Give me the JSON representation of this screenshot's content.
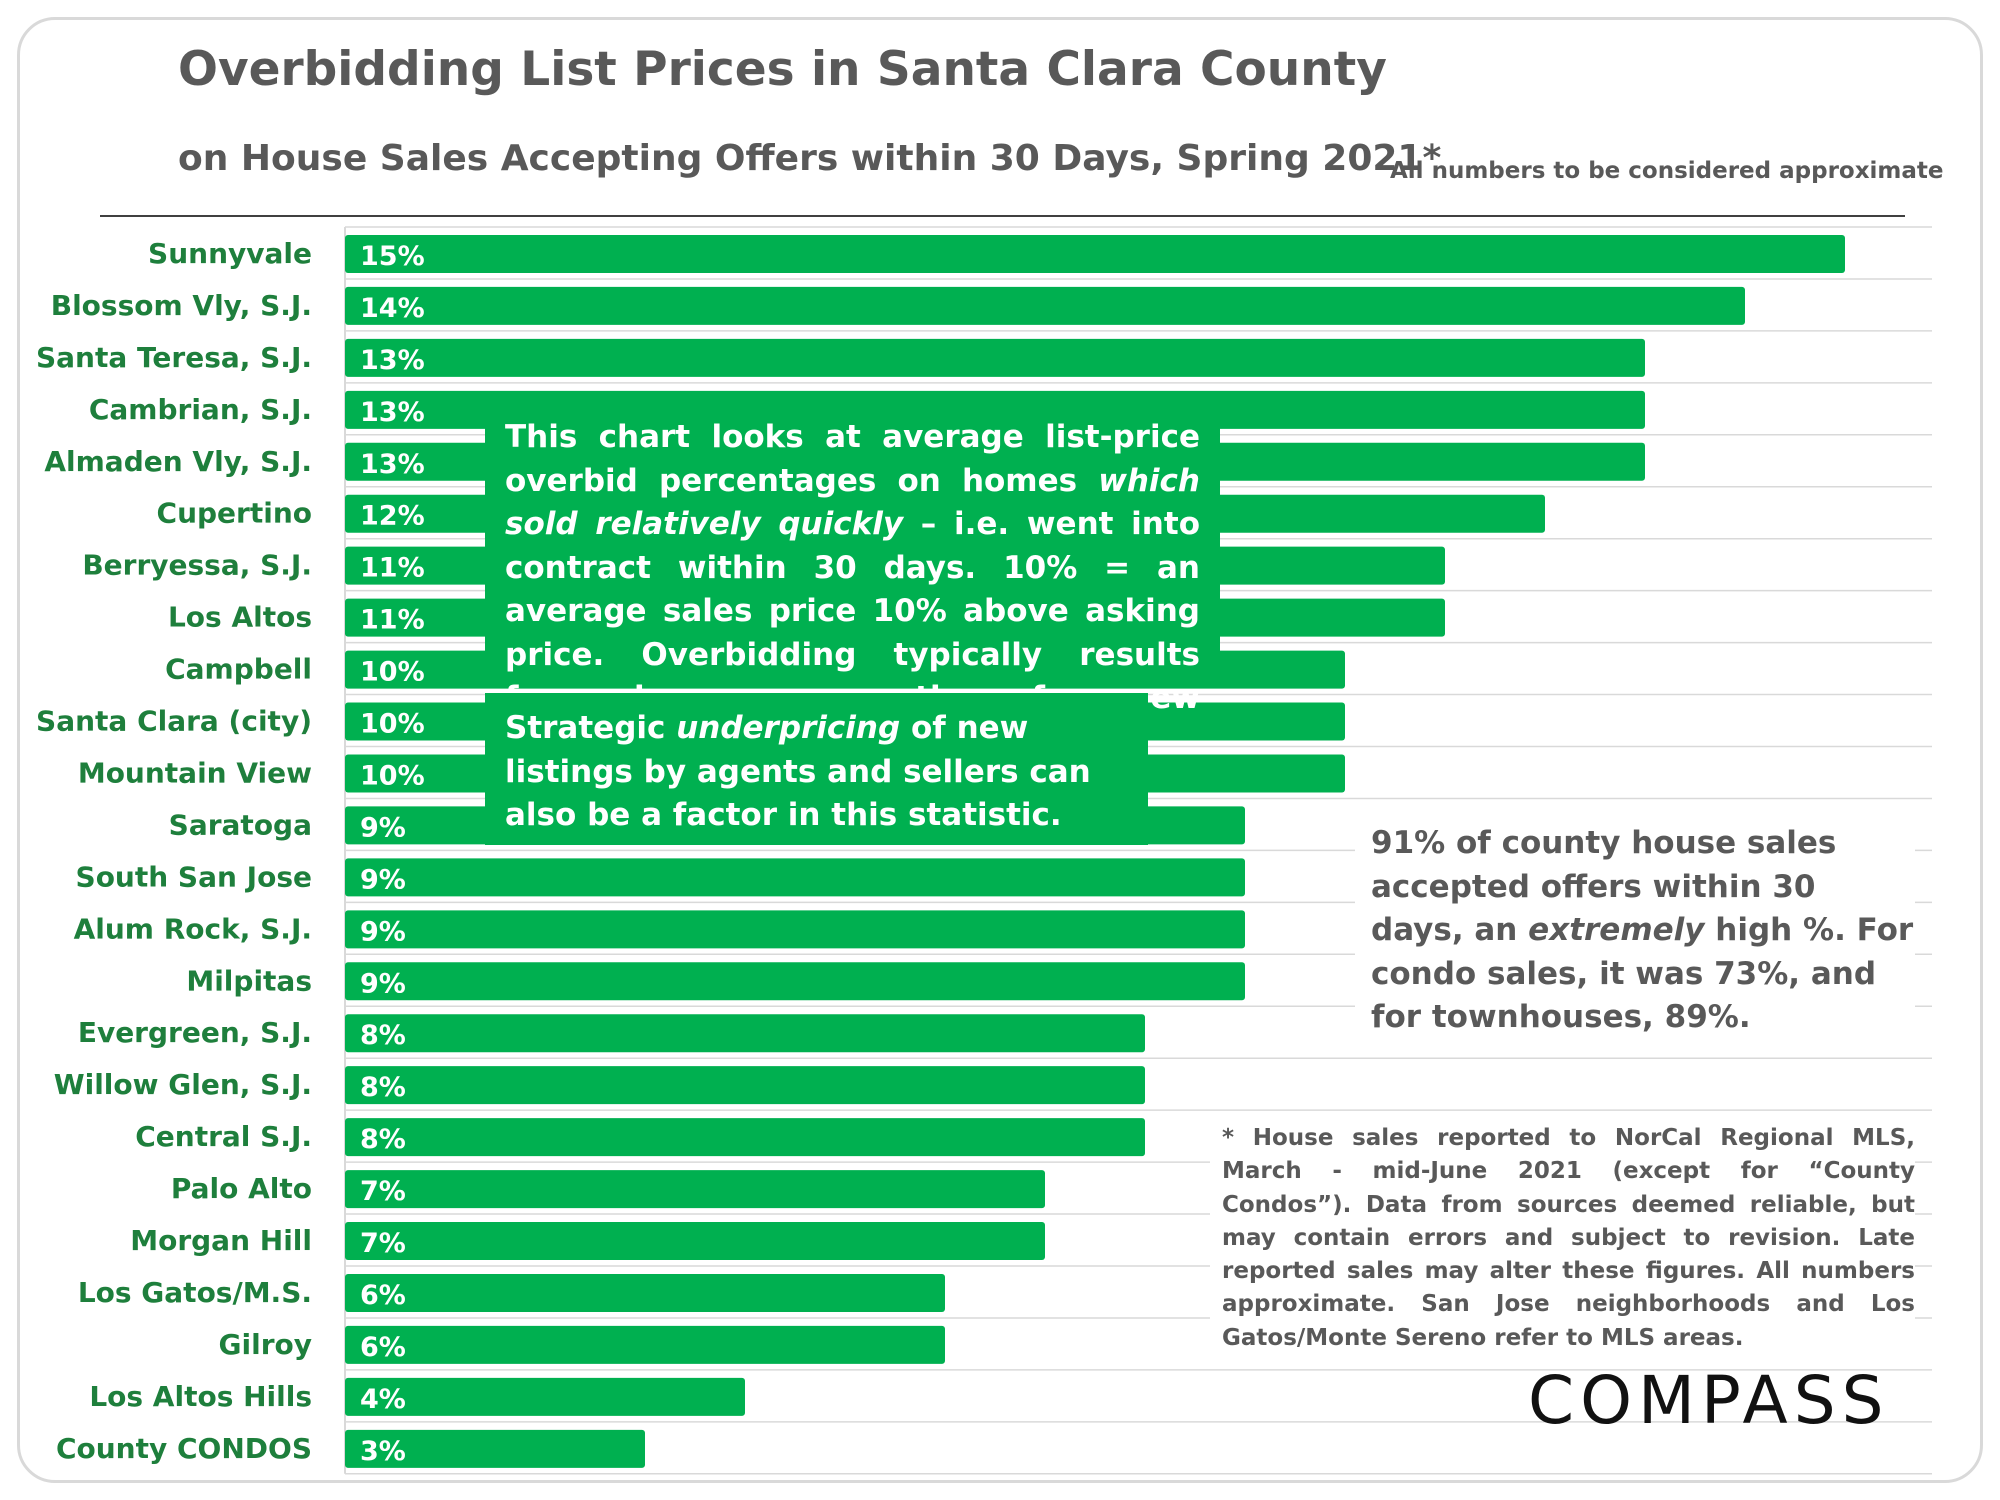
{
  "header": {
    "title": "Overbidding List Prices in Santa Clara County",
    "subtitle": "on House Sales Accepting Offers within 30 Days, Spring 2021*",
    "note": "All numbers to be considered approximate"
  },
  "chart_data": {
    "type": "bar",
    "orientation": "horizontal",
    "categories": [
      "Sunnyvale",
      "Blossom Vly, S.J.",
      "Santa Teresa, S.J.",
      "Cambrian, S.J.",
      "Almaden Vly, S.J.",
      "Cupertino",
      "Berryessa, S.J.",
      "Los Altos",
      "Campbell",
      "Santa Clara (city)",
      "Mountain View",
      "Saratoga",
      "South San Jose",
      "Alum Rock, S.J.",
      "Milpitas",
      "Evergreen, S.J.",
      "Willow Glen, S.J.",
      "Central S.J.",
      "Palo Alto",
      "Morgan Hill",
      "Los Gatos/M.S.",
      "Gilroy",
      "Los Altos Hills",
      "County CONDOS"
    ],
    "values": [
      15,
      14,
      13,
      13,
      13,
      12,
      11,
      11,
      10,
      10,
      10,
      9,
      9,
      9,
      9,
      8,
      8,
      8,
      7,
      7,
      6,
      6,
      4,
      3
    ],
    "value_labels": [
      "15%",
      "14%",
      "13%",
      "13%",
      "13%",
      "12%",
      "11%",
      "11%",
      "10%",
      "10%",
      "10%",
      "9%",
      "9%",
      "9%",
      "9%",
      "8%",
      "8%",
      "8%",
      "7%",
      "7%",
      "6%",
      "6%",
      "4%",
      "3%"
    ],
    "title": "Overbidding List Prices in Santa Clara County",
    "subtitle": "on House Sales Accepting Offers within 30 Days, Spring 2021*",
    "xlim": [
      0,
      16
    ],
    "grid": true,
    "bar_color": "#00b050",
    "label_color": "#1e7f3c"
  },
  "callout1": {
    "p1": "This chart looks at average list-price overbid percentages on homes ",
    "em": "which sold relatively quickly",
    "p2": " – i.e. went into contract within 30 days. 10% = an average sales price 10% above asking price. Overbidding typically results from buyers competing for new listings."
  },
  "callout2": {
    "p1": "Strategic ",
    "em": "underpricing",
    "p2": " of new listings by agents and sellers can also be a factor in this statistic."
  },
  "side_note": {
    "p1": "91% of county house sales accepted offers within 30 days, an ",
    "em": "extremely",
    "p2": " high %. For condo sales, it was 73%, and for townhouses, 89%."
  },
  "footnote": "* House sales reported to NorCal Regional MLS, March - mid-June 2021 (except for “County Condos”). Data from sources deemed reliable, but may contain errors and subject to revision. Late reported sales may alter these figures. All numbers approximate. San Jose neighborhoods and Los Gatos/Monte Sereno refer to MLS areas.",
  "logo": "COMPASS"
}
